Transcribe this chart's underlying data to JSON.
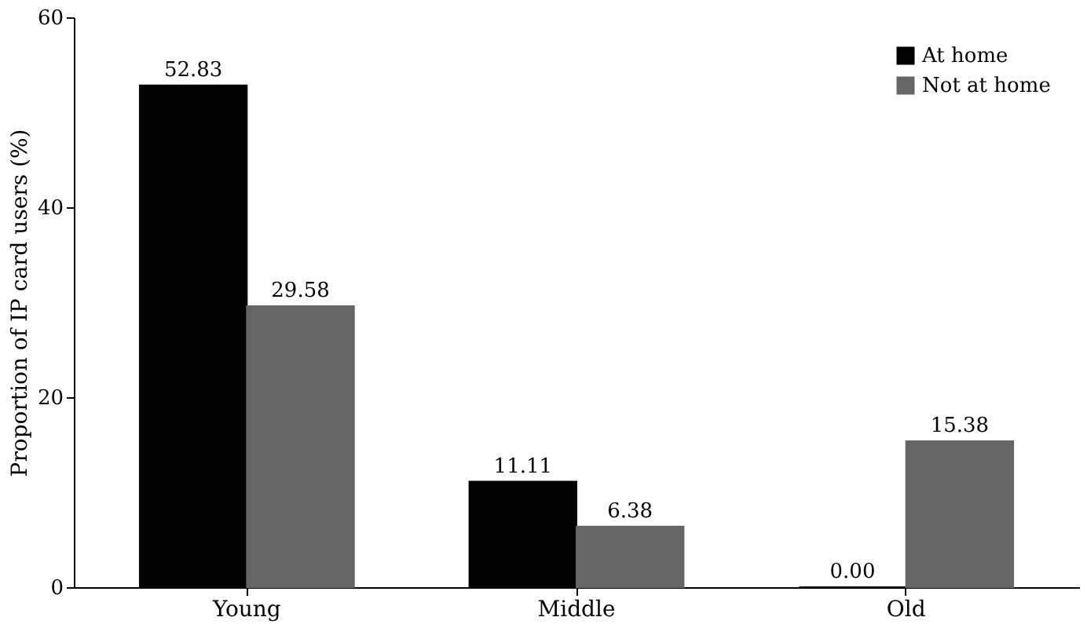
{
  "chart_data": {
    "type": "bar",
    "ylabel": "Proportion of IP card users (%)",
    "categories": [
      "Young",
      "Middle",
      "Old"
    ],
    "series": [
      {
        "name": "At home",
        "color": "#000000",
        "values": [
          52.83,
          11.11,
          0.0
        ],
        "value_labels": [
          "52.83",
          "11.11",
          "0.00"
        ]
      },
      {
        "name": "Not at home",
        "color": "#666666",
        "values": [
          29.58,
          6.38,
          15.38
        ],
        "value_labels": [
          "29.58",
          "6.38",
          "15.38"
        ]
      }
    ],
    "ylim": [
      0,
      60
    ],
    "yticks": [
      0,
      20,
      40,
      60
    ],
    "grid": false,
    "legend": "top right"
  }
}
